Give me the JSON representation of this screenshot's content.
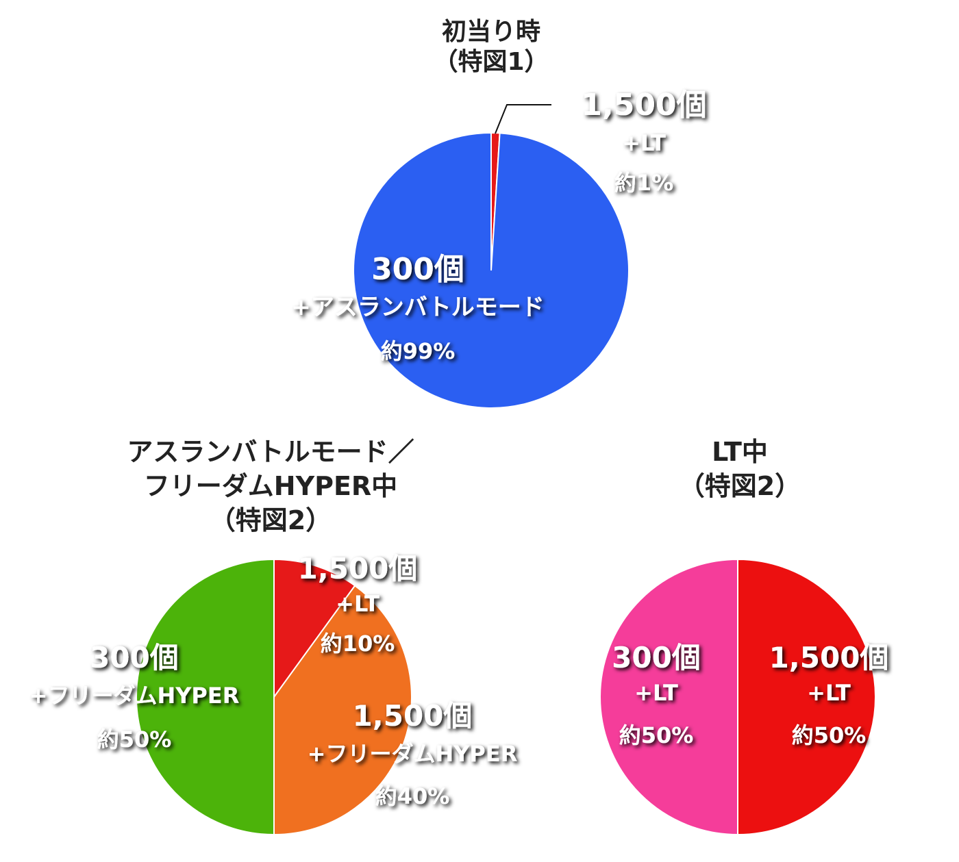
{
  "chart_data": [
    {
      "type": "pie",
      "title": [
        "初当り時",
        "（特図1）"
      ],
      "start_angle_deg": 0,
      "slices": [
        {
          "value": 1,
          "color": "#e61919",
          "labels": [
            "1,500個",
            "+LT",
            "約1%"
          ]
        },
        {
          "value": 99,
          "color": "#2b5ff2",
          "labels": [
            "300個",
            "+アスランバトルモード",
            "約99%"
          ]
        }
      ]
    },
    {
      "type": "pie",
      "title": [
        "アスランバトルモード／",
        "フリーダムHYPER中",
        "（特図2）"
      ],
      "start_angle_deg": 0,
      "slices": [
        {
          "value": 10,
          "color": "#e61919",
          "labels": [
            "1,500個",
            "+LT",
            "約10%"
          ]
        },
        {
          "value": 40,
          "color": "#f07020",
          "labels": [
            "1,500個",
            "+フリーダムHYPER",
            "約40%"
          ]
        },
        {
          "value": 50,
          "color": "#4cb30a",
          "labels": [
            "300個",
            "+フリーダムHYPER",
            "約50%"
          ]
        }
      ]
    },
    {
      "type": "pie",
      "title": [
        "LT中",
        "（特図2）"
      ],
      "start_angle_deg": 0,
      "slices": [
        {
          "value": 50,
          "color": "#ec1010",
          "labels": [
            "1,500個",
            "+LT",
            "約50%"
          ]
        },
        {
          "value": 50,
          "color": "#f53d9a",
          "labels": [
            "300個",
            "+LT",
            "約50%"
          ]
        }
      ]
    }
  ]
}
